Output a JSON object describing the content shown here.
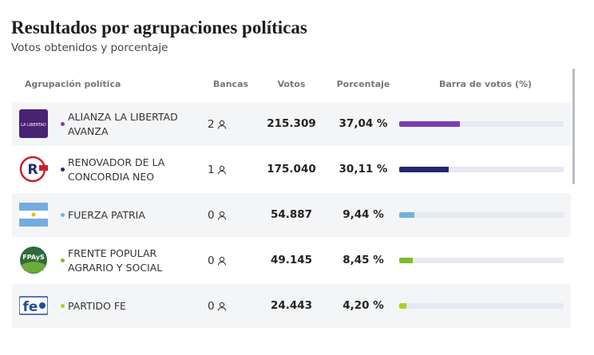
{
  "header": {
    "title": "Resultados por agrupaciones políticas",
    "subtitle": "Votos obtenidos y porcentaje"
  },
  "table": {
    "columns": [
      "Agrupación política",
      "Bancas",
      "Votos",
      "Porcentaje",
      "Barra de votos (%)"
    ],
    "rows": [
      {
        "name": "ALIANZA LA LIBERTAD AVANZA",
        "seats": 2,
        "votes": "215.309",
        "pct": 37.04,
        "pct_label": "37,04 %",
        "color": "#7b3fb5"
      },
      {
        "name": "RENOVADOR DE LA CONCORDIA NEO",
        "seats": 1,
        "votes": "175.040",
        "pct": 30.11,
        "pct_label": "30,11 %",
        "color": "#1f2a6b"
      },
      {
        "name": "FUERZA PATRIA",
        "seats": 0,
        "votes": "54.887",
        "pct": 9.44,
        "pct_label": "9,44 %",
        "color": "#6cb3de"
      },
      {
        "name": "FRENTE POPULAR AGRARIO Y SOCIAL",
        "seats": 0,
        "votes": "49.145",
        "pct": 8.45,
        "pct_label": "8,45 %",
        "color": "#7bbd2a"
      },
      {
        "name": "PARTIDO FE",
        "seats": 0,
        "votes": "24.443",
        "pct": 4.2,
        "pct_label": "4,20 %",
        "color": "#a8d22a"
      }
    ]
  }
}
